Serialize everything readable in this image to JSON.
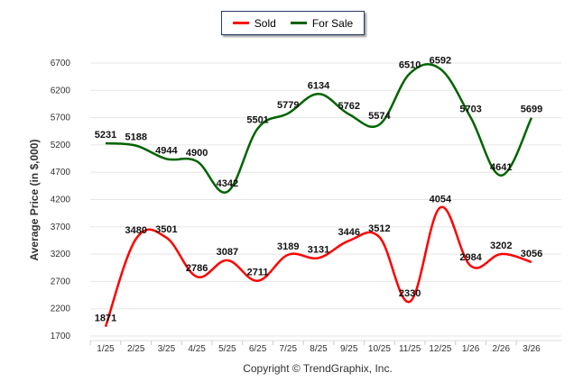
{
  "chart_data": {
    "type": "line",
    "title": "",
    "xlabel": "",
    "ylabel": "Average Price (in $,000)",
    "categories": [
      "1/25",
      "2/25",
      "3/25",
      "4/25",
      "5/25",
      "6/25",
      "7/25",
      "8/25",
      "9/25",
      "10/25",
      "11/25",
      "12/25",
      "1/26",
      "2/26",
      "3/26"
    ],
    "ylim": [
      1700,
      6700
    ],
    "yticks": [
      1700,
      2200,
      2700,
      3200,
      3700,
      4200,
      4700,
      5200,
      5700,
      6200,
      6700
    ],
    "grid": true,
    "legend_position": "top-center",
    "series": [
      {
        "name": "Sold",
        "color": "#ff0000",
        "values": [
          1871,
          3480,
          3501,
          2786,
          3087,
          2711,
          3189,
          3131,
          3446,
          3512,
          2330,
          4054,
          2984,
          3202,
          3056
        ]
      },
      {
        "name": "For Sale",
        "color": "#006400",
        "values": [
          5231,
          5188,
          4944,
          4900,
          4342,
          5501,
          5779,
          6134,
          5762,
          5574,
          6510,
          6592,
          5703,
          4641,
          5699
        ]
      }
    ]
  },
  "footer": {
    "copyright": "Copyright © TrendGraphix, Inc."
  }
}
